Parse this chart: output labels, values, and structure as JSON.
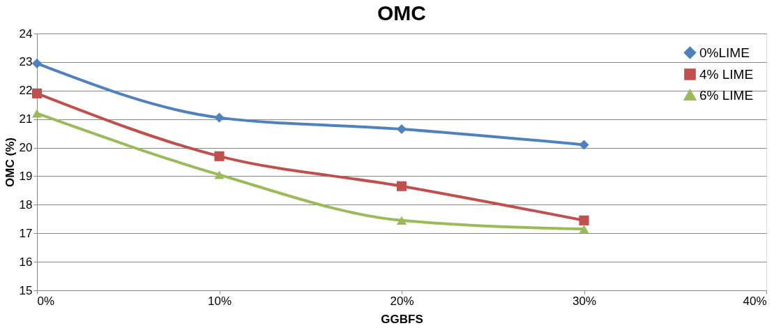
{
  "chart_data": {
    "type": "line",
    "title": "OMC",
    "xlabel": "GGBFS",
    "ylabel": "OMC (%)",
    "x": [
      0,
      10,
      20,
      30
    ],
    "series": [
      {
        "name": "0%LIME",
        "color": "#4f81bd",
        "marker": "diamond",
        "values": [
          22.95,
          21.05,
          20.65,
          20.1
        ]
      },
      {
        "name": "4% LIME",
        "color": "#c0504d",
        "marker": "square",
        "values": [
          21.9,
          19.7,
          18.65,
          17.45
        ]
      },
      {
        "name": "6% LIME",
        "color": "#9bbb59",
        "marker": "triangle",
        "values": [
          21.2,
          19.05,
          17.45,
          17.15
        ]
      }
    ],
    "xlim": [
      0,
      40
    ],
    "xticks": [
      {
        "value": 0,
        "label": "0%"
      },
      {
        "value": 10,
        "label": "10%"
      },
      {
        "value": 20,
        "label": "20%"
      },
      {
        "value": 30,
        "label": "30%"
      },
      {
        "value": 40,
        "label": "40%"
      }
    ],
    "ylim": [
      15,
      24
    ],
    "yticks": [
      15,
      16,
      17,
      18,
      19,
      20,
      21,
      22,
      23,
      24
    ],
    "grid": "y",
    "legend": "top right",
    "line_style": "solid"
  }
}
